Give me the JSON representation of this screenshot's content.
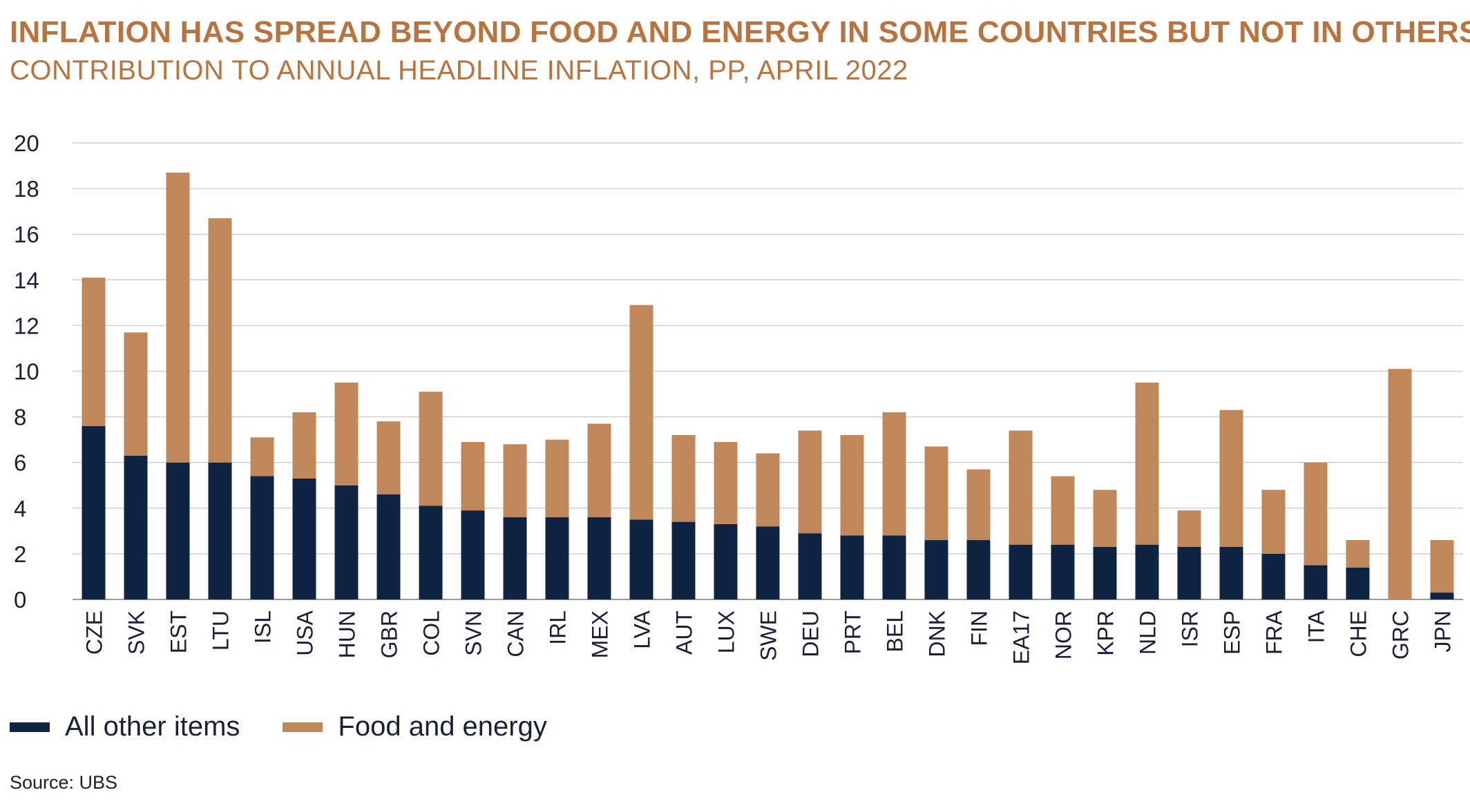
{
  "title": "INFLATION HAS SPREAD BEYOND FOOD AND ENERGY IN SOME COUNTRIES BUT NOT IN OTHERS",
  "subtitle": "CONTRIBUTION TO ANNUAL HEADLINE INFLATION, PP, APRIL 2022",
  "source": "Source: UBS",
  "colors": {
    "other": "#0f2342",
    "food": "#c0875a",
    "grid": "#cfcfcf",
    "text": "#1a1f36"
  },
  "legend": [
    {
      "label": "All other items",
      "color": "#0f2342"
    },
    {
      "label": "Food and energy",
      "color": "#c0875a"
    }
  ],
  "chart_data": {
    "type": "bar",
    "stacked": true,
    "title": "INFLATION HAS SPREAD BEYOND FOOD AND ENERGY IN SOME COUNTRIES BUT NOT IN OTHERS",
    "subtitle": "CONTRIBUTION TO ANNUAL HEADLINE INFLATION, PP, APRIL 2022",
    "xlabel": "",
    "ylabel": "",
    "ylim": [
      0,
      20
    ],
    "yticks": [
      0,
      2,
      4,
      6,
      8,
      10,
      12,
      14,
      16,
      18,
      20
    ],
    "grid": true,
    "legend_position": "bottom-left",
    "categories": [
      "CZE",
      "SVK",
      "EST",
      "LTU",
      "ISL",
      "USA",
      "HUN",
      "GBR",
      "COL",
      "SVN",
      "CAN",
      "IRL",
      "MEX",
      "LVA",
      "AUT",
      "LUX",
      "SWE",
      "DEU",
      "PRT",
      "BEL",
      "DNK",
      "FIN",
      "EA17",
      "NOR",
      "KPR",
      "NLD",
      "ISR",
      "ESP",
      "FRA",
      "ITA",
      "CHE",
      "GRC",
      "JPN"
    ],
    "series": [
      {
        "name": "All other items",
        "values": [
          7.6,
          6.3,
          6.0,
          6.0,
          5.4,
          5.3,
          5.0,
          4.6,
          4.1,
          3.9,
          3.6,
          3.6,
          3.6,
          3.5,
          3.4,
          3.3,
          3.2,
          2.9,
          2.8,
          2.8,
          2.6,
          2.6,
          2.4,
          2.4,
          2.3,
          2.4,
          2.3,
          2.3,
          2.0,
          1.5,
          1.4,
          0.0,
          0.3
        ]
      },
      {
        "name": "Food and energy",
        "values": [
          6.5,
          5.4,
          12.7,
          10.7,
          1.7,
          2.9,
          4.5,
          3.2,
          5.0,
          3.0,
          3.2,
          3.4,
          4.1,
          9.4,
          3.8,
          3.6,
          3.2,
          4.5,
          4.4,
          5.4,
          4.1,
          3.1,
          5.0,
          3.0,
          2.5,
          7.1,
          1.6,
          6.0,
          2.8,
          4.5,
          1.2,
          10.1,
          2.3
        ]
      }
    ]
  }
}
